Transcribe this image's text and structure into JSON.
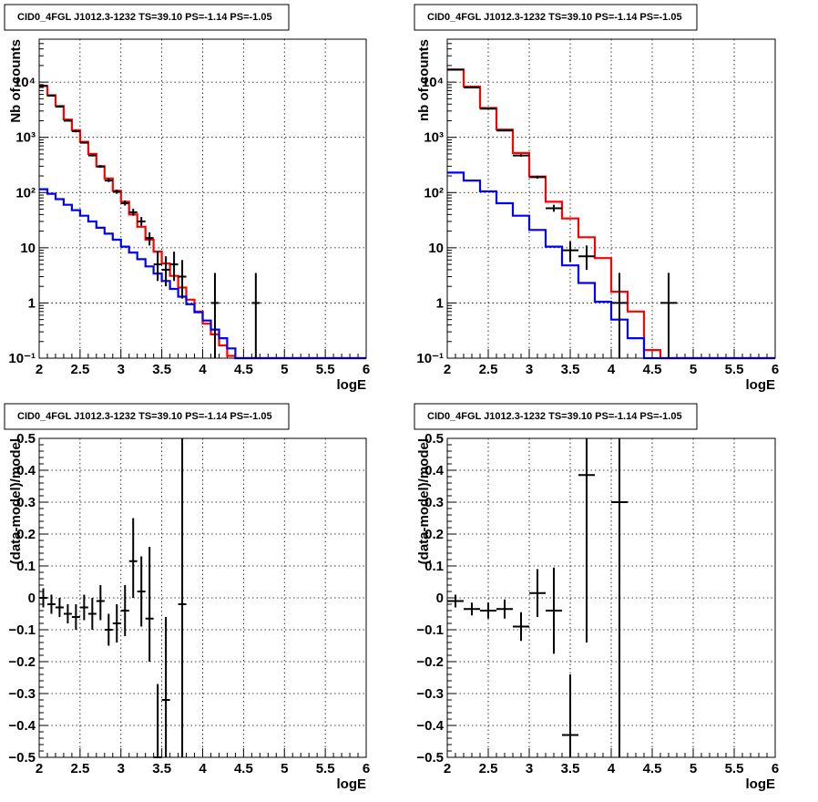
{
  "colors": {
    "data": "#000000",
    "total_model": "#ff0000",
    "source_model": "#0000ff",
    "grid": "#000000"
  },
  "chart_data": [
    {
      "type": "line",
      "title": "CID0_4FGL J1012.3-1232 TS=39.10 PS=-1.14 PS=-1.05",
      "xlabel": "logE",
      "ylabel": "Nb of counts",
      "xlim": [
        2,
        6
      ],
      "ylim": [
        0.1,
        60000
      ],
      "yscale": "log",
      "grid": true,
      "x_ticks": [
        "2",
        "2.5",
        "3",
        "3.5",
        "4",
        "4.5",
        "5",
        "5.5",
        "6"
      ],
      "y_ticks": [
        {
          "value": 0.1,
          "label": "10⁻¹"
        },
        {
          "value": 1,
          "label": "1"
        },
        {
          "value": 10,
          "label": "10"
        },
        {
          "value": 100,
          "label": "10²"
        },
        {
          "value": 1000,
          "label": "10³"
        },
        {
          "value": 10000,
          "label": "10⁴"
        }
      ],
      "series": [
        {
          "kind": "step",
          "color": "#ff0000",
          "edges": [
            2.0,
            2.1,
            2.2,
            2.3,
            2.4,
            2.5,
            2.6,
            2.7,
            2.8,
            2.9,
            3.0,
            3.1,
            3.2,
            3.3,
            3.4,
            3.5,
            3.6,
            3.7,
            3.8,
            3.9,
            4.0,
            4.1,
            4.2,
            4.3,
            4.4,
            4.5,
            6.0
          ],
          "values": [
            8500,
            5800,
            3700,
            2100,
            1350,
            830,
            500,
            300,
            180,
            108,
            68,
            40,
            24,
            14,
            8.5,
            5.2,
            3.1,
            1.9,
            1.15,
            0.7,
            0.42,
            0.27,
            0.17,
            0.11,
            0.1,
            0.1
          ]
        },
        {
          "kind": "step",
          "color": "#0000ff",
          "edges": [
            2.0,
            2.1,
            2.2,
            2.3,
            2.4,
            2.5,
            2.6,
            2.7,
            2.8,
            2.9,
            3.0,
            3.1,
            3.2,
            3.3,
            3.4,
            3.5,
            3.6,
            3.7,
            3.8,
            3.9,
            4.0,
            4.1,
            4.2,
            4.3,
            4.4,
            4.5,
            6.0
          ],
          "values": [
            115,
            95,
            76,
            60,
            48,
            38,
            30,
            23,
            18,
            14,
            10.5,
            8.2,
            6.2,
            4.6,
            3.4,
            2.5,
            1.8,
            1.3,
            0.95,
            0.68,
            0.48,
            0.33,
            0.23,
            0.15,
            0.1,
            0.1
          ]
        },
        {
          "kind": "errorbar",
          "color": "#000000",
          "x": [
            2.05,
            2.15,
            2.25,
            2.35,
            2.45,
            2.55,
            2.65,
            2.75,
            2.85,
            2.95,
            3.05,
            3.15,
            3.25,
            3.35,
            3.45,
            3.55,
            3.65,
            3.75,
            4.15,
            4.65
          ],
          "xerr": 0.05,
          "y": [
            8600,
            5700,
            3600,
            2000,
            1290,
            800,
            470,
            295,
            165,
            103,
            64,
            44,
            30,
            15,
            5,
            4,
            5,
            3,
            1,
            1
          ],
          "ylow": [
            8400,
            5500,
            3450,
            1950,
            1230,
            770,
            450,
            280,
            155,
            95,
            58,
            38,
            25,
            11,
            2.5,
            2,
            2.5,
            1.2,
            0.1,
            0.1
          ],
          "yhigh": [
            8800,
            5900,
            3750,
            2100,
            1350,
            830,
            490,
            315,
            180,
            113,
            72,
            51,
            36,
            19,
            8.5,
            7,
            8.5,
            6,
            3.5,
            3.5
          ]
        }
      ]
    },
    {
      "type": "line",
      "title": "CID0_4FGL J1012.3-1232 TS=39.10 PS=-1.14 PS=-1.05",
      "xlabel": "logE",
      "ylabel": "nb of counts",
      "xlim": [
        2,
        6
      ],
      "ylim": [
        0.1,
        60000
      ],
      "yscale": "log",
      "grid": true,
      "x_ticks": [
        "2",
        "2.5",
        "3",
        "3.5",
        "4",
        "4.5",
        "5",
        "5.5",
        "6"
      ],
      "y_ticks": [
        {
          "value": 0.1,
          "label": "10⁻¹"
        },
        {
          "value": 1,
          "label": "1"
        },
        {
          "value": 10,
          "label": "10"
        },
        {
          "value": 100,
          "label": "10²"
        },
        {
          "value": 1000,
          "label": "10³"
        },
        {
          "value": 10000,
          "label": "10⁴"
        }
      ],
      "series": [
        {
          "kind": "step",
          "color": "#ff0000",
          "edges": [
            2.0,
            2.2,
            2.4,
            2.6,
            2.8,
            3.0,
            3.2,
            3.4,
            3.6,
            3.8,
            4.0,
            4.2,
            4.4,
            4.6,
            6.0
          ],
          "values": [
            17000,
            8300,
            3400,
            1380,
            520,
            195,
            68,
            34,
            15.5,
            6.5,
            1.6,
            0.7,
            0.14,
            0.1
          ],
          "note": ""
        },
        {
          "kind": "step",
          "color": "#0000ff",
          "edges": [
            2.0,
            2.2,
            2.4,
            2.6,
            2.8,
            3.0,
            3.2,
            3.4,
            3.6,
            3.8,
            4.0,
            4.2,
            4.4,
            4.6,
            6.0
          ],
          "values": [
            230,
            165,
            105,
            64,
            38,
            21,
            10.5,
            4.8,
            2.3,
            1.05,
            0.5,
            0.23,
            0.1,
            0.1
          ]
        },
        {
          "kind": "errorbar",
          "color": "#000000",
          "x": [
            2.1,
            2.3,
            2.5,
            2.7,
            2.9,
            3.1,
            3.3,
            3.5,
            3.7,
            4.1,
            4.7
          ],
          "xerr": 0.1,
          "y": [
            16800,
            8000,
            3300,
            1330,
            470,
            190,
            52,
            9,
            7,
            1,
            1
          ],
          "ylow": [
            16500,
            7800,
            3200,
            1290,
            445,
            178,
            45,
            5.5,
            4,
            0.1,
            0.1
          ],
          "yhigh": [
            17100,
            8200,
            3400,
            1370,
            495,
            202,
            60,
            13,
            11,
            3.5,
            3.5
          ]
        }
      ]
    },
    {
      "type": "scatter",
      "title": "CID0_4FGL J1012.3-1232 TS=39.10 PS=-1.14 PS=-1.05",
      "xlabel": "logE",
      "ylabel": "(data-model)/model",
      "xlim": [
        2,
        6
      ],
      "ylim": [
        -0.5,
        0.5
      ],
      "grid": true,
      "x_ticks": [
        "2",
        "2.5",
        "3",
        "3.5",
        "4",
        "4.5",
        "5",
        "5.5",
        "6"
      ],
      "y_ticks": [
        {
          "value": -0.5,
          "label": "−0.5"
        },
        {
          "value": -0.4,
          "label": "−0.4"
        },
        {
          "value": -0.3,
          "label": "−0.3"
        },
        {
          "value": -0.2,
          "label": "−0.2"
        },
        {
          "value": -0.1,
          "label": "−0.1"
        },
        {
          "value": 0,
          "label": "0"
        },
        {
          "value": 0.1,
          "label": "0.1"
        },
        {
          "value": 0.2,
          "label": "0.2"
        },
        {
          "value": 0.3,
          "label": "0.3"
        },
        {
          "value": 0.4,
          "label": "0.4"
        },
        {
          "value": 0.5,
          "label": "0.5"
        }
      ],
      "series": [
        {
          "kind": "errorbar",
          "color": "#000000",
          "x": [
            2.05,
            2.15,
            2.25,
            2.35,
            2.45,
            2.55,
            2.65,
            2.75,
            2.85,
            2.95,
            3.05,
            3.15,
            3.25,
            3.35,
            3.45,
            3.55,
            3.75
          ],
          "xerr": 0.05,
          "y": [
            0.0,
            -0.02,
            -0.03,
            -0.05,
            -0.06,
            -0.03,
            -0.05,
            -0.01,
            -0.1,
            -0.08,
            -0.04,
            0.115,
            0.02,
            -0.065,
            -0.5,
            -0.32,
            -0.02
          ],
          "ylow": [
            -0.03,
            -0.05,
            -0.06,
            -0.08,
            -0.1,
            -0.07,
            -0.1,
            -0.07,
            -0.15,
            -0.14,
            -0.12,
            0.0,
            -0.09,
            -0.2,
            -0.5,
            -0.5,
            -0.5
          ],
          "yhigh": [
            0.03,
            0.01,
            0.0,
            -0.02,
            -0.02,
            0.01,
            0.0,
            0.04,
            -0.05,
            -0.02,
            0.04,
            0.25,
            0.13,
            0.16,
            -0.27,
            -0.06,
            0.5
          ]
        }
      ]
    },
    {
      "type": "scatter",
      "title": "CID0_4FGL J1012.3-1232 TS=39.10 PS=-1.14 PS=-1.05",
      "xlabel": "logE",
      "ylabel": "(data-model)/model",
      "xlim": [
        2,
        6
      ],
      "ylim": [
        -0.5,
        0.5
      ],
      "grid": true,
      "x_ticks": [
        "2",
        "2.5",
        "3",
        "3.5",
        "4",
        "4.5",
        "5",
        "5.5",
        "6"
      ],
      "y_ticks": [
        {
          "value": -0.5,
          "label": "−0.5"
        },
        {
          "value": -0.4,
          "label": "−0.4"
        },
        {
          "value": -0.3,
          "label": "−0.3"
        },
        {
          "value": -0.2,
          "label": "−0.2"
        },
        {
          "value": -0.1,
          "label": "−0.1"
        },
        {
          "value": 0,
          "label": "0"
        },
        {
          "value": 0.1,
          "label": "0.1"
        },
        {
          "value": 0.2,
          "label": "0.2"
        },
        {
          "value": 0.3,
          "label": "0.3"
        },
        {
          "value": 0.4,
          "label": "0.4"
        },
        {
          "value": 0.5,
          "label": "0.5"
        }
      ],
      "series": [
        {
          "kind": "errorbar",
          "color": "#000000",
          "x": [
            2.1,
            2.3,
            2.5,
            2.7,
            2.9,
            3.1,
            3.3,
            3.5,
            3.7,
            4.1
          ],
          "xerr": 0.1,
          "y": [
            -0.01,
            -0.035,
            -0.04,
            -0.035,
            -0.09,
            0.015,
            -0.04,
            -0.43,
            0.385,
            0.3
          ],
          "ylow": [
            -0.03,
            -0.055,
            -0.065,
            -0.065,
            -0.135,
            -0.06,
            -0.175,
            -0.5,
            -0.14,
            -0.5
          ],
          "yhigh": [
            0.01,
            -0.015,
            -0.015,
            -0.005,
            -0.045,
            0.09,
            0.095,
            -0.24,
            0.5,
            0.5
          ]
        }
      ]
    }
  ]
}
